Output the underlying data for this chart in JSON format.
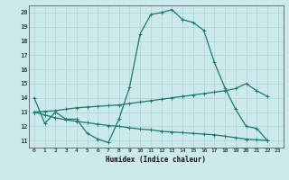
{
  "xlabel": "Humidex (Indice chaleur)",
  "background_color": "#cce9ec",
  "grid_color": "#aad4d8",
  "line_color": "#1a7a6e",
  "xlim": [
    -0.5,
    23.5
  ],
  "ylim": [
    10.5,
    20.5
  ],
  "xtick_labels": [
    "0",
    "1",
    "2",
    "3",
    "4",
    "5",
    "6",
    "7",
    "8",
    "9",
    "10",
    "11",
    "12",
    "13",
    "14",
    "15",
    "16",
    "17",
    "18",
    "19",
    "20",
    "21",
    "22",
    "23"
  ],
  "ytick_labels": [
    "11",
    "12",
    "13",
    "14",
    "15",
    "16",
    "17",
    "18",
    "19",
    "20"
  ],
  "xticks": [
    0,
    1,
    2,
    3,
    4,
    5,
    6,
    7,
    8,
    9,
    10,
    11,
    12,
    13,
    14,
    15,
    16,
    17,
    18,
    19,
    20,
    21,
    22,
    23
  ],
  "yticks": [
    11,
    12,
    13,
    14,
    15,
    16,
    17,
    18,
    19,
    20
  ],
  "curve1_x": [
    0,
    1,
    2,
    3,
    4,
    5,
    6,
    7,
    8,
    9,
    10,
    11,
    12,
    13,
    14,
    15,
    16,
    17,
    18,
    19,
    20,
    21,
    22
  ],
  "curve1_y": [
    14,
    12.2,
    13,
    12.5,
    12.5,
    11.5,
    11.1,
    10.85,
    12.5,
    14.75,
    18.5,
    19.85,
    20.0,
    20.2,
    19.5,
    19.3,
    18.75,
    16.5,
    14.7,
    13.2,
    12.0,
    11.85,
    11.0
  ],
  "curve2_x": [
    0,
    1,
    2,
    3,
    4,
    5,
    6,
    7,
    8,
    9,
    10,
    11,
    12,
    13,
    14,
    15,
    16,
    17,
    18,
    19,
    20,
    21,
    22
  ],
  "curve2_y": [
    13.0,
    13.05,
    13.1,
    13.2,
    13.3,
    13.35,
    13.4,
    13.45,
    13.5,
    13.6,
    13.7,
    13.8,
    13.9,
    14.0,
    14.1,
    14.2,
    14.3,
    14.4,
    14.5,
    14.65,
    15.0,
    14.5,
    14.1
  ],
  "curve3_x": [
    0,
    1,
    2,
    3,
    4,
    5,
    6,
    7,
    8,
    9,
    10,
    11,
    12,
    13,
    14,
    15,
    16,
    17,
    18,
    19,
    20,
    21,
    22
  ],
  "curve3_y": [
    13.0,
    12.8,
    12.6,
    12.45,
    12.35,
    12.25,
    12.15,
    12.05,
    12.0,
    11.9,
    11.8,
    11.75,
    11.65,
    11.6,
    11.55,
    11.5,
    11.45,
    11.4,
    11.3,
    11.2,
    11.1,
    11.05,
    11.0
  ]
}
